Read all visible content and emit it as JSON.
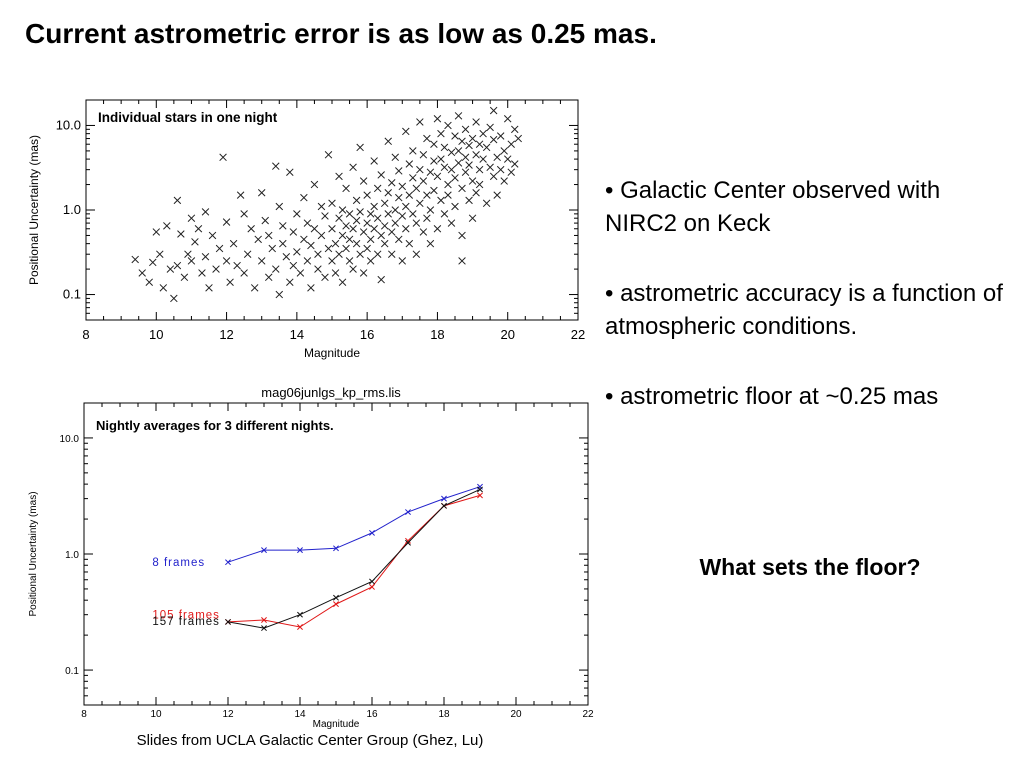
{
  "slide": {
    "title": "Current astrometric error is as low as 0.25 mas.",
    "bullets": [
      "• Galactic Center observed with NIRC2 on Keck",
      "• astrometric accuracy is a function of atmospheric conditions.",
      "• astrometric floor at ~0.25 mas"
    ],
    "question": "What sets the floor?",
    "credit": "Slides from UCLA Galactic Center Group (Ghez, Lu)"
  },
  "chart_data": [
    {
      "type": "scatter",
      "title": "",
      "annotation": "Individual stars in one night",
      "xlabel": "Magnitude",
      "ylabel": "Positional Uncertainty (mas)",
      "xlim": [
        8,
        22
      ],
      "ylim": [
        0.05,
        20
      ],
      "yscale": "log",
      "x_ticks": [
        "8",
        "10",
        "12",
        "14",
        "16",
        "18",
        "20",
        "22"
      ],
      "y_ticks": [
        {
          "value": 0.1,
          "label": "0.1"
        },
        {
          "value": 1,
          "label": "1.0"
        },
        {
          "value": 10,
          "label": "10.0"
        }
      ],
      "marker": "x",
      "marker_color": "#222222",
      "points": [
        [
          9.4,
          0.26
        ],
        [
          9.6,
          0.18
        ],
        [
          9.8,
          0.14
        ],
        [
          9.9,
          0.24
        ],
        [
          10.0,
          0.55
        ],
        [
          10.1,
          0.3
        ],
        [
          10.2,
          0.12
        ],
        [
          10.3,
          0.65
        ],
        [
          10.4,
          0.2
        ],
        [
          10.5,
          0.09
        ],
        [
          10.6,
          1.3
        ],
        [
          10.6,
          0.22
        ],
        [
          10.7,
          0.52
        ],
        [
          10.8,
          0.16
        ],
        [
          10.9,
          0.3
        ],
        [
          11.0,
          0.25
        ],
        [
          11.0,
          0.8
        ],
        [
          11.1,
          0.42
        ],
        [
          11.2,
          0.6
        ],
        [
          11.3,
          0.18
        ],
        [
          11.4,
          0.95
        ],
        [
          11.4,
          0.28
        ],
        [
          11.5,
          0.12
        ],
        [
          11.6,
          0.5
        ],
        [
          11.7,
          0.2
        ],
        [
          11.8,
          0.35
        ],
        [
          11.9,
          4.2
        ],
        [
          12.0,
          0.25
        ],
        [
          12.0,
          0.72
        ],
        [
          12.1,
          0.14
        ],
        [
          12.2,
          0.4
        ],
        [
          12.3,
          0.22
        ],
        [
          12.4,
          1.5
        ],
        [
          12.5,
          0.9
        ],
        [
          12.5,
          0.18
        ],
        [
          12.6,
          0.3
        ],
        [
          12.7,
          0.6
        ],
        [
          12.8,
          0.12
        ],
        [
          12.9,
          0.45
        ],
        [
          13.0,
          1.6
        ],
        [
          13.0,
          0.25
        ],
        [
          13.1,
          0.75
        ],
        [
          13.2,
          0.16
        ],
        [
          13.2,
          0.5
        ],
        [
          13.3,
          0.35
        ],
        [
          13.4,
          3.3
        ],
        [
          13.4,
          0.2
        ],
        [
          13.5,
          1.1
        ],
        [
          13.5,
          0.1
        ],
        [
          13.6,
          0.4
        ],
        [
          13.6,
          0.65
        ],
        [
          13.7,
          0.28
        ],
        [
          13.8,
          2.8
        ],
        [
          13.8,
          0.14
        ],
        [
          13.9,
          0.55
        ],
        [
          13.9,
          0.22
        ],
        [
          14.0,
          0.9
        ],
        [
          14.0,
          0.32
        ],
        [
          14.1,
          0.18
        ],
        [
          14.2,
          1.4
        ],
        [
          14.2,
          0.45
        ],
        [
          14.3,
          0.25
        ],
        [
          14.3,
          0.7
        ],
        [
          14.4,
          0.12
        ],
        [
          14.4,
          0.38
        ],
        [
          14.5,
          2.0
        ],
        [
          14.5,
          0.6
        ],
        [
          14.6,
          0.2
        ],
        [
          14.6,
          0.3
        ],
        [
          14.7,
          1.1
        ],
        [
          14.7,
          0.5
        ],
        [
          14.8,
          0.16
        ],
        [
          14.8,
          0.85
        ],
        [
          14.9,
          0.35
        ],
        [
          14.9,
          4.5
        ],
        [
          15.0,
          0.25
        ],
        [
          15.0,
          0.6
        ],
        [
          15.0,
          1.2
        ],
        [
          15.1,
          0.4
        ],
        [
          15.1,
          0.18
        ],
        [
          15.2,
          0.8
        ],
        [
          15.2,
          2.5
        ],
        [
          15.2,
          0.3
        ],
        [
          15.3,
          0.5
        ],
        [
          15.3,
          1.0
        ],
        [
          15.3,
          0.14
        ],
        [
          15.4,
          0.65
        ],
        [
          15.4,
          0.35
        ],
        [
          15.4,
          1.8
        ],
        [
          15.5,
          0.25
        ],
        [
          15.5,
          0.9
        ],
        [
          15.5,
          0.45
        ],
        [
          15.6,
          3.2
        ],
        [
          15.6,
          0.6
        ],
        [
          15.6,
          0.2
        ],
        [
          15.7,
          1.3
        ],
        [
          15.7,
          0.4
        ],
        [
          15.7,
          0.75
        ],
        [
          15.8,
          0.3
        ],
        [
          15.8,
          0.95
        ],
        [
          15.8,
          5.5
        ],
        [
          15.9,
          0.55
        ],
        [
          15.9,
          0.18
        ],
        [
          15.9,
          2.2
        ],
        [
          16.0,
          0.7
        ],
        [
          16.0,
          0.35
        ],
        [
          16.0,
          1.5
        ],
        [
          16.1,
          0.45
        ],
        [
          16.1,
          0.9
        ],
        [
          16.1,
          0.25
        ],
        [
          16.2,
          3.8
        ],
        [
          16.2,
          1.1
        ],
        [
          16.2,
          0.6
        ],
        [
          16.3,
          0.3
        ],
        [
          16.3,
          1.8
        ],
        [
          16.3,
          0.8
        ],
        [
          16.4,
          0.5
        ],
        [
          16.4,
          2.6
        ],
        [
          16.4,
          0.15
        ],
        [
          16.5,
          1.2
        ],
        [
          16.5,
          0.65
        ],
        [
          16.5,
          0.4
        ],
        [
          16.6,
          6.5
        ],
        [
          16.6,
          1.6
        ],
        [
          16.6,
          0.9
        ],
        [
          16.7,
          0.55
        ],
        [
          16.7,
          2.1
        ],
        [
          16.7,
          0.3
        ],
        [
          16.8,
          1.0
        ],
        [
          16.8,
          4.2
        ],
        [
          16.8,
          0.7
        ],
        [
          16.9,
          0.45
        ],
        [
          16.9,
          1.4
        ],
        [
          16.9,
          2.9
        ],
        [
          17.0,
          0.85
        ],
        [
          17.0,
          0.25
        ],
        [
          17.0,
          1.9
        ],
        [
          17.1,
          8.5
        ],
        [
          17.1,
          1.1
        ],
        [
          17.1,
          0.6
        ],
        [
          17.2,
          3.5
        ],
        [
          17.2,
          0.4
        ],
        [
          17.2,
          1.5
        ],
        [
          17.3,
          2.4
        ],
        [
          17.3,
          0.9
        ],
        [
          17.3,
          5.0
        ],
        [
          17.4,
          0.7
        ],
        [
          17.4,
          1.8
        ],
        [
          17.4,
          0.3
        ],
        [
          17.5,
          3.0
        ],
        [
          17.5,
          1.2
        ],
        [
          17.5,
          11.0
        ],
        [
          17.6,
          0.55
        ],
        [
          17.6,
          2.2
        ],
        [
          17.6,
          4.5
        ],
        [
          17.7,
          1.5
        ],
        [
          17.7,
          0.8
        ],
        [
          17.7,
          7.0
        ],
        [
          17.8,
          2.8
        ],
        [
          17.8,
          0.4
        ],
        [
          17.8,
          1.0
        ],
        [
          17.9,
          3.8
        ],
        [
          17.9,
          1.7
        ],
        [
          17.9,
          6.0
        ],
        [
          18.0,
          2.5
        ],
        [
          18.0,
          0.6
        ],
        [
          18.0,
          12.0
        ],
        [
          18.1,
          4.0
        ],
        [
          18.1,
          1.3
        ],
        [
          18.1,
          8.0
        ],
        [
          18.2,
          3.2
        ],
        [
          18.2,
          0.9
        ],
        [
          18.2,
          5.5
        ],
        [
          18.3,
          2.0
        ],
        [
          18.3,
          10.0
        ],
        [
          18.3,
          1.5
        ],
        [
          18.4,
          4.8
        ],
        [
          18.4,
          0.7
        ],
        [
          18.4,
          3.0
        ],
        [
          18.5,
          7.5
        ],
        [
          18.5,
          2.4
        ],
        [
          18.5,
          1.1
        ],
        [
          18.6,
          5.0
        ],
        [
          18.6,
          13.0
        ],
        [
          18.6,
          3.6
        ],
        [
          18.7,
          1.8
        ],
        [
          18.7,
          6.5
        ],
        [
          18.7,
          0.5
        ],
        [
          18.8,
          4.2
        ],
        [
          18.8,
          2.8
        ],
        [
          18.8,
          9.0
        ],
        [
          18.9,
          1.3
        ],
        [
          18.9,
          5.8
        ],
        [
          18.9,
          3.4
        ],
        [
          19.0,
          7.0
        ],
        [
          19.0,
          2.2
        ],
        [
          19.0,
          0.8
        ],
        [
          19.1,
          4.5
        ],
        [
          19.1,
          11.0
        ],
        [
          19.1,
          1.6
        ],
        [
          19.2,
          6.0
        ],
        [
          19.2,
          3.0
        ],
        [
          19.2,
          2.0
        ],
        [
          19.3,
          8.0
        ],
        [
          19.3,
          4.0
        ],
        [
          19.4,
          1.2
        ],
        [
          19.4,
          5.5
        ],
        [
          19.5,
          3.2
        ],
        [
          19.5,
          9.5
        ],
        [
          19.6,
          2.5
        ],
        [
          19.6,
          6.8
        ],
        [
          19.7,
          4.2
        ],
        [
          19.7,
          1.5
        ],
        [
          19.8,
          7.5
        ],
        [
          19.8,
          3.0
        ],
        [
          19.9,
          5.0
        ],
        [
          19.9,
          2.2
        ],
        [
          20.0,
          12.0
        ],
        [
          20.0,
          4.0
        ],
        [
          20.1,
          6.0
        ],
        [
          20.1,
          2.8
        ],
        [
          20.2,
          9.0
        ],
        [
          20.2,
          3.5
        ],
        [
          18.7,
          0.25
        ],
        [
          19.6,
          15.0
        ],
        [
          20.3,
          7.0
        ]
      ]
    },
    {
      "type": "line",
      "title": "mag06junlgs_kp_rms.lis",
      "annotation": "Nightly averages for 3 different nights.",
      "xlabel": "Magnitude",
      "ylabel": "Positional Uncertainty (mas)",
      "xlim": [
        8,
        22
      ],
      "ylim": [
        0.05,
        20
      ],
      "yscale": "log",
      "x_ticks": [
        "8",
        "10",
        "12",
        "14",
        "16",
        "18",
        "20",
        "22"
      ],
      "y_ticks": [
        {
          "value": 0.1,
          "label": "0.1"
        },
        {
          "value": 1,
          "label": "1.0"
        },
        {
          "value": 10,
          "label": "10.0"
        }
      ],
      "x": [
        12,
        13,
        14,
        15,
        16,
        17,
        18,
        19
      ],
      "series": [
        {
          "name": "8 frames",
          "color": "#2222cc",
          "values": [
            0.85,
            1.08,
            1.08,
            1.12,
            1.52,
            2.3,
            3.0,
            3.8
          ],
          "label_at": [
            9.9,
            0.85
          ]
        },
        {
          "name": "105 frames",
          "color": "#e01818",
          "values": [
            0.26,
            0.27,
            0.235,
            0.37,
            0.52,
            1.3,
            2.6,
            3.2
          ],
          "label_at": [
            9.9,
            0.3
          ]
        },
        {
          "name": "157 frames",
          "color": "#111111",
          "values": [
            0.26,
            0.23,
            0.3,
            0.42,
            0.58,
            1.25,
            2.6,
            3.6
          ],
          "label_at": [
            9.9,
            0.265
          ]
        }
      ]
    }
  ]
}
